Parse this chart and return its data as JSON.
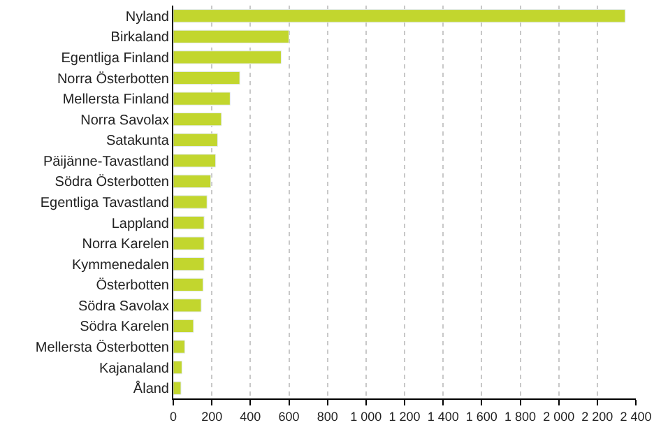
{
  "chart_data": {
    "type": "bar",
    "orientation": "horizontal",
    "categories": [
      "Nyland",
      "Birkaland",
      "Egentliga Finland",
      "Norra Österbotten",
      "Mellersta Finland",
      "Norra Savolax",
      "Satakunta",
      "Päijänne-Tavastland",
      "Södra Österbotten",
      "Egentliga Tavastland",
      "Lappland",
      "Norra Karelen",
      "Kymmenedalen",
      "Österbotten",
      "Södra Savolax",
      "Södra Karelen",
      "Mellersta Österbotten",
      "Kajanaland",
      "Åland"
    ],
    "values": [
      2345,
      600,
      560,
      345,
      295,
      250,
      230,
      220,
      195,
      175,
      160,
      160,
      160,
      155,
      145,
      105,
      60,
      45,
      40
    ],
    "color": "#c2d62e",
    "xlim": [
      0,
      2400
    ],
    "xticks": [
      0,
      200,
      400,
      600,
      800,
      {
        "value": 1000,
        "label": "1 000"
      },
      {
        "value": 1200,
        "label": "1 200"
      },
      {
        "value": 1400,
        "label": "1 400"
      },
      {
        "value": 1600,
        "label": "1 600"
      },
      {
        "value": 1800,
        "label": "1 800"
      },
      {
        "value": 2000,
        "label": "2 000"
      },
      {
        "value": 2200,
        "label": "2 200"
      },
      {
        "value": 2400,
        "label": "2 400"
      }
    ],
    "grid": "x"
  }
}
